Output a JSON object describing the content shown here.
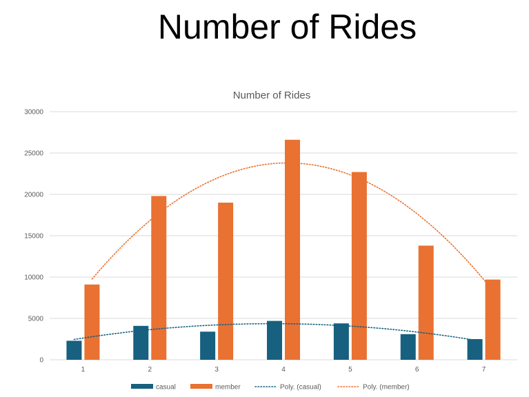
{
  "slide": {
    "title": "Number of Rides"
  },
  "colors": {
    "casual": "#17607f",
    "member": "#e97132"
  },
  "chart_data": {
    "type": "bar",
    "title": "Number of Rides",
    "categories": [
      "1",
      "2",
      "3",
      "4",
      "5",
      "6",
      "7"
    ],
    "series": [
      {
        "name": "casual",
        "values": [
          2300,
          4100,
          3400,
          4700,
          4400,
          3100,
          2500
        ]
      },
      {
        "name": "member",
        "values": [
          9100,
          19800,
          19000,
          26600,
          22700,
          13800,
          9700
        ]
      }
    ],
    "trendlines": [
      {
        "name": "Poly. (casual)",
        "series": "casual",
        "order": 2,
        "style": "dotted"
      },
      {
        "name": "Poly. (member)",
        "series": "member",
        "order": 2,
        "style": "dotted"
      }
    ],
    "xlabel": "",
    "ylabel": "",
    "ylim": [
      0,
      30000
    ],
    "yticks": [
      "0",
      "5000",
      "10000",
      "15000",
      "20000",
      "25000",
      "30000"
    ],
    "grid": true,
    "legend": "bottom"
  }
}
